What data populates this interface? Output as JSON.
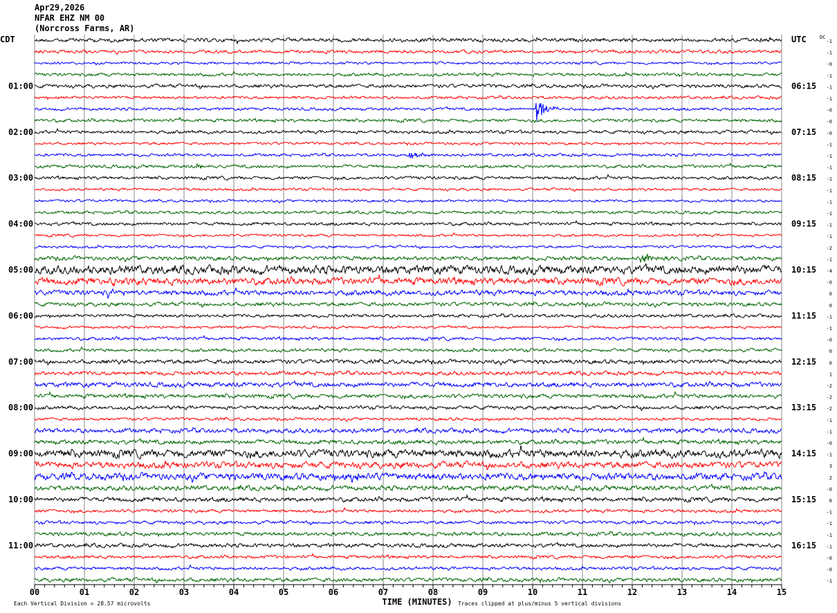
{
  "header": {
    "date": "Apr29,2026",
    "station": "NFAR EHZ NM 00",
    "location": "(Norcross Farms, AR)"
  },
  "chart_data": {
    "type": "line",
    "title": "NFAR EHZ NM 00 helicorder",
    "left_tz": "CDT",
    "right_tz": "UTC",
    "dc_label": "DC",
    "left_hour_labels": [
      "01:00",
      "02:00",
      "03:00",
      "04:00",
      "05:00",
      "06:00",
      "07:00",
      "08:00",
      "09:00",
      "10:00",
      "11:00"
    ],
    "right_hour_labels": [
      "06:15",
      "07:15",
      "08:15",
      "09:15",
      "10:15",
      "11:15",
      "12:15",
      "13:15",
      "14:15",
      "15:15",
      "16:15"
    ],
    "rows_per_hour": 4,
    "xlabel": "TIME (MINUTES)",
    "xticks": [
      "00",
      "01",
      "02",
      "03",
      "04",
      "05",
      "06",
      "07",
      "08",
      "09",
      "10",
      "11",
      "12",
      "13",
      "14",
      "15"
    ],
    "xlim": [
      0,
      15
    ],
    "trace_colors": [
      "#000000",
      "#ff0000",
      "#0000ff",
      "#006400"
    ],
    "dc_offsets": [
      "-1",
      "-1",
      "-0",
      "-1",
      "-1",
      "-1",
      "-0",
      "-0",
      "-0",
      "-1",
      "-1",
      "-1",
      "-1",
      "-1",
      "-1",
      "-1",
      "-1",
      "-1",
      "-2",
      "-1",
      "-4",
      "-0",
      "0",
      "0",
      "-1",
      "-1",
      "-0",
      "0",
      "0",
      "1",
      "-2",
      "-2",
      "-2",
      "-1",
      "-1",
      "-0",
      "-1",
      "3",
      "2",
      "-0",
      "0",
      "-1",
      "-1",
      "-1",
      "-1",
      "-0",
      "-0",
      "-1"
    ],
    "noise_divisions": [
      1.2,
      1,
      0.8,
      1,
      1.1,
      0.9,
      0.9,
      1,
      1,
      0.8,
      0.9,
      1,
      1,
      0.8,
      0.8,
      0.9,
      1,
      0.8,
      0.8,
      1.3,
      2.6,
      2.2,
      1.6,
      1.2,
      1,
      0.8,
      1,
      1,
      1.3,
      1.2,
      1.5,
      1.3,
      1.1,
      0.9,
      1.4,
      1.4,
      2.5,
      2,
      2.2,
      1.5,
      1.4,
      1,
      1,
      1.2,
      1.2,
      1,
      1,
      1.2
    ],
    "events": [
      {
        "row": 6,
        "minute": 10.1,
        "amplitude_divisions": 10
      },
      {
        "row": 10,
        "minute": 7.55,
        "amplitude_divisions": 3
      },
      {
        "row": 11,
        "minute": 3.3,
        "amplitude_divisions": 2
      },
      {
        "row": 19,
        "minute": 12.2,
        "amplitude_divisions": 3
      },
      {
        "row": 21,
        "minute": 1.6,
        "amplitude_divisions": 3
      },
      {
        "row": 22,
        "minute": 1.5,
        "amplitude_divisions": 3
      },
      {
        "row": 38,
        "minute": 6.4,
        "amplitude_divisions": 4
      }
    ],
    "footer_left": "Each Vertical Division =   28.57 microvolts",
    "footer_right": "Traces clipped at plus/minus 5 vertical divisions"
  }
}
